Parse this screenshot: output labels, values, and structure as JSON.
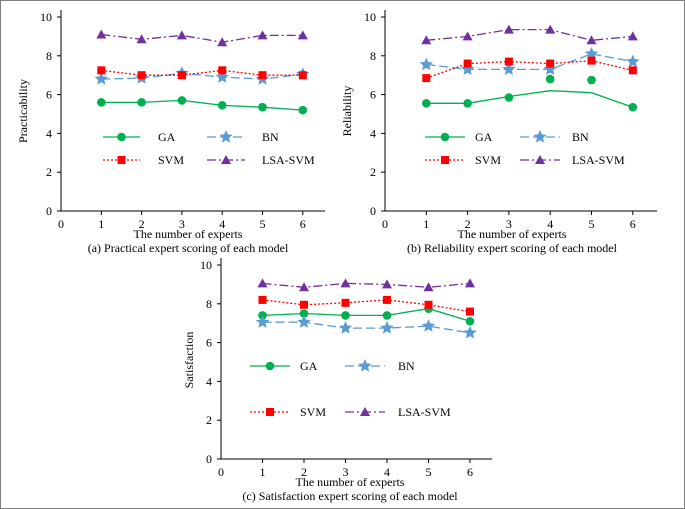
{
  "chart_data": [
    {
      "type": "line",
      "id": "a",
      "title": "(a) Practical expert scoring of each model",
      "xlabel": "The number of experts",
      "ylabel": "Practicability",
      "x": [
        1,
        2,
        3,
        4,
        5,
        6
      ],
      "xticks": [
        "0",
        "1",
        "2",
        "3",
        "4",
        "5",
        "6"
      ],
      "yticks": [
        "0",
        "2",
        "4",
        "6",
        "8",
        "10"
      ],
      "xlim": [
        0,
        6.5
      ],
      "ylim": [
        0,
        10
      ],
      "grid": false,
      "series": [
        {
          "name": "GA",
          "values": [
            5.6,
            5.6,
            5.7,
            5.45,
            5.35,
            5.2
          ]
        },
        {
          "name": "BN",
          "values": [
            6.8,
            6.85,
            7.1,
            6.9,
            6.8,
            7.05
          ]
        },
        {
          "name": "SVM",
          "values": [
            7.25,
            7.0,
            7.0,
            7.25,
            7.0,
            7.0
          ]
        },
        {
          "name": "LSA-SVM",
          "values": [
            9.1,
            8.85,
            9.05,
            8.7,
            9.05,
            9.05
          ]
        }
      ]
    },
    {
      "type": "line",
      "id": "b",
      "title": "(b) Reliability expert scoring of each model",
      "xlabel": "The number of experts",
      "ylabel": "Reliability",
      "x": [
        1,
        2,
        3,
        4,
        5,
        6
      ],
      "xticks": [
        "0",
        "1",
        "2",
        "3",
        "4",
        "5",
        "6"
      ],
      "yticks": [
        "0",
        "2",
        "4",
        "6",
        "8",
        "10"
      ],
      "xlim": [
        0,
        6.5
      ],
      "ylim": [
        0,
        10
      ],
      "grid": false,
      "series": [
        {
          "name": "GA",
          "values": [
            5.55,
            5.55,
            5.85,
            6.8,
            6.75,
            5.35
          ],
          "line_values": [
            5.55,
            5.55,
            5.9,
            6.2,
            6.1,
            5.35
          ]
        },
        {
          "name": "BN",
          "values": [
            7.55,
            7.3,
            7.3,
            7.3,
            8.1,
            7.7
          ]
        },
        {
          "name": "SVM",
          "values": [
            6.85,
            7.6,
            7.7,
            7.6,
            7.75,
            7.25
          ]
        },
        {
          "name": "LSA-SVM",
          "values": [
            8.8,
            9.0,
            9.35,
            9.35,
            8.8,
            9.0
          ]
        }
      ]
    },
    {
      "type": "line",
      "id": "c",
      "title": "(c) Satisfaction expert scoring of each model",
      "xlabel": "The number of experts",
      "ylabel": "Satisfaction",
      "x": [
        1,
        2,
        3,
        4,
        5,
        6
      ],
      "xticks": [
        "0",
        "1",
        "2",
        "3",
        "4",
        "5",
        "6"
      ],
      "yticks": [
        "0",
        "2",
        "4",
        "6",
        "8",
        "10"
      ],
      "xlim": [
        0,
        6.5
      ],
      "ylim": [
        0,
        10
      ],
      "grid": false,
      "series": [
        {
          "name": "GA",
          "values": [
            7.4,
            7.5,
            7.4,
            7.4,
            7.75,
            7.1
          ]
        },
        {
          "name": "BN",
          "values": [
            7.05,
            7.05,
            6.75,
            6.75,
            6.85,
            6.5
          ]
        },
        {
          "name": "SVM",
          "values": [
            8.2,
            7.95,
            8.05,
            8.2,
            7.95,
            7.6
          ]
        },
        {
          "name": "LSA-SVM",
          "values": [
            9.05,
            8.85,
            9.05,
            9.0,
            8.85,
            9.05
          ]
        }
      ]
    }
  ],
  "series_styles": {
    "GA": {
      "color": "#00b050",
      "marker": "circle",
      "dash": ""
    },
    "BN": {
      "color": "#5b9bd5",
      "marker": "star",
      "dash": "9,4"
    },
    "SVM": {
      "color": "#ff0000",
      "marker": "square",
      "dash": "2,2"
    },
    "LSA-SVM": {
      "color": "#7030a0",
      "marker": "triangle",
      "dash": "9,3,2,3"
    }
  },
  "frame_color": "#7f7f7f"
}
